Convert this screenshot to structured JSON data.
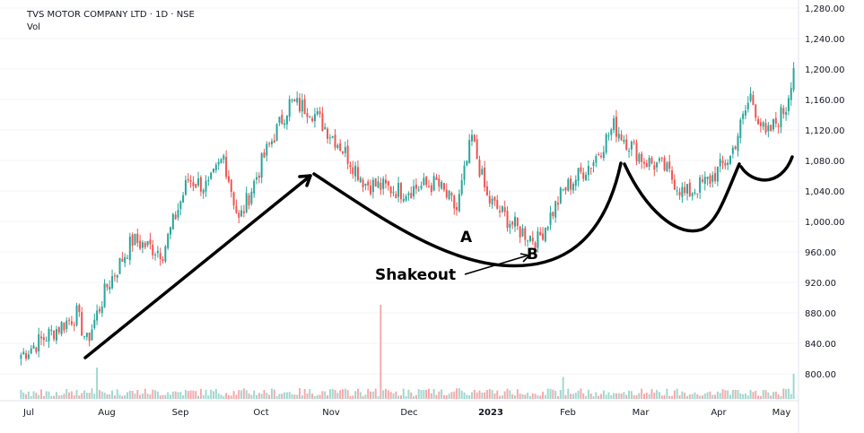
{
  "header": {
    "title": "TVS MOTOR COMPANY LTD · 1D · NSE",
    "volume_label": "Vol"
  },
  "colors": {
    "up": "#26a69a",
    "down": "#ef5350",
    "up_volume": "#9fd8cf",
    "down_volume": "#f5a9ac",
    "annotation": "#000000"
  },
  "chart_data": {
    "type": "candlestick",
    "title": "TVS MOTOR COMPANY LTD · 1D · NSE",
    "y_axis": {
      "position": "right",
      "range": [
        760,
        1290
      ],
      "ticks": [
        "1,280.00",
        "1,240.00",
        "1,200.00",
        "1,160.00",
        "1,120.00",
        "1,080.00",
        "1,040.00",
        "1,000.00",
        "960.00",
        "920.00",
        "880.00",
        "840.00",
        "800.00"
      ]
    },
    "x_axis": {
      "labels": [
        {
          "text": "Jul",
          "bold": false
        },
        {
          "text": "Aug",
          "bold": false
        },
        {
          "text": "Sep",
          "bold": false
        },
        {
          "text": "Oct",
          "bold": false
        },
        {
          "text": "Nov",
          "bold": false
        },
        {
          "text": "Dec",
          "bold": false
        },
        {
          "text": "2023",
          "bold": true
        },
        {
          "text": "Feb",
          "bold": false
        },
        {
          "text": "Mar",
          "bold": false
        },
        {
          "text": "Apr",
          "bold": false
        },
        {
          "text": "May",
          "bold": false
        }
      ]
    },
    "anchors": [
      {
        "t": 0,
        "c": 825
      },
      {
        "t": 22,
        "c": 878
      },
      {
        "t": 26,
        "c": 842
      },
      {
        "t": 34,
        "c": 915
      },
      {
        "t": 44,
        "c": 975
      },
      {
        "t": 56,
        "c": 960
      },
      {
        "t": 66,
        "c": 1055
      },
      {
        "t": 74,
        "c": 1045
      },
      {
        "t": 80,
        "c": 1085
      },
      {
        "t": 86,
        "c": 1000
      },
      {
        "t": 96,
        "c": 1085
      },
      {
        "t": 106,
        "c": 1155
      },
      {
        "t": 114,
        "c": 1148
      },
      {
        "t": 126,
        "c": 1100
      },
      {
        "t": 136,
        "c": 1050
      },
      {
        "t": 150,
        "c": 1040
      },
      {
        "t": 164,
        "c": 1050
      },
      {
        "t": 172,
        "c": 1015
      },
      {
        "t": 178,
        "c": 1110
      },
      {
        "t": 184,
        "c": 1030
      },
      {
        "t": 196,
        "c": 990
      },
      {
        "t": 204,
        "c": 975
      },
      {
        "t": 214,
        "c": 1040
      },
      {
        "t": 226,
        "c": 1080
      },
      {
        "t": 234,
        "c": 1125
      },
      {
        "t": 246,
        "c": 1080
      },
      {
        "t": 254,
        "c": 1070
      },
      {
        "t": 262,
        "c": 1035
      },
      {
        "t": 272,
        "c": 1055
      },
      {
        "t": 280,
        "c": 1085
      },
      {
        "t": 288,
        "c": 1165
      },
      {
        "t": 294,
        "c": 1110
      },
      {
        "t": 302,
        "c": 1150
      },
      {
        "t": 305,
        "c": 1205
      }
    ],
    "total_days": 306,
    "volume_spikes": [
      {
        "t": 30,
        "v": 10
      },
      {
        "t": 142,
        "v": 30
      },
      {
        "t": 214,
        "v": 7
      },
      {
        "t": 305,
        "v": 8
      }
    ],
    "annotations": [
      {
        "text": "Shakeout"
      },
      {
        "text": "A"
      },
      {
        "text": "B"
      }
    ]
  }
}
